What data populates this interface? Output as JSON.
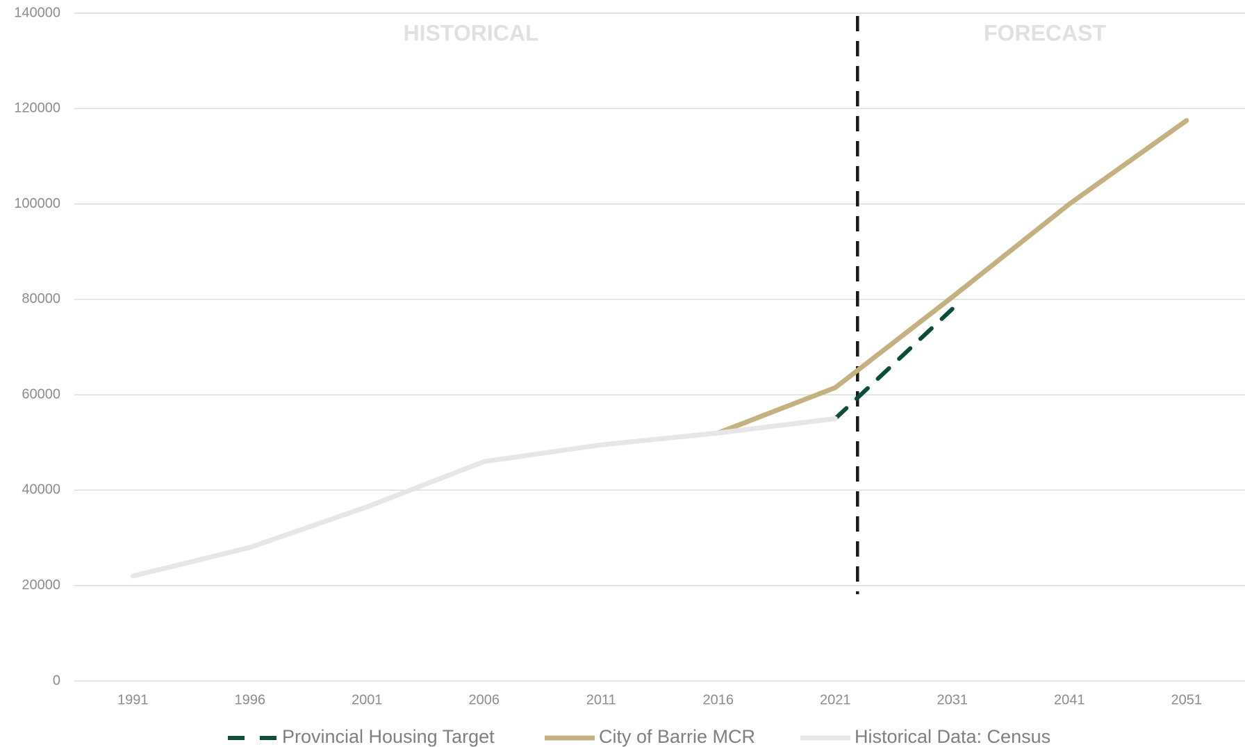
{
  "chart_data": {
    "type": "line",
    "annotations": [
      "HISTORICAL",
      "FORECAST"
    ],
    "categories": [
      "1991",
      "1996",
      "2001",
      "2006",
      "2011",
      "2016",
      "2021",
      "2031",
      "2041",
      "2051"
    ],
    "series": [
      {
        "name": "Provincial Housing Target",
        "color": "#0b4d3a",
        "dashed": true,
        "values": [
          null,
          null,
          null,
          null,
          null,
          null,
          55000,
          78000,
          null,
          null
        ]
      },
      {
        "name": "City of Barrie MCR",
        "color": "#c3b27f",
        "values": [
          null,
          null,
          null,
          null,
          null,
          52000,
          61500,
          80500,
          100000,
          117500
        ]
      },
      {
        "name": "Historical Data: Census",
        "color": "#e6e6e6",
        "values": [
          22000,
          28000,
          36500,
          46000,
          49500,
          52000,
          55000,
          null,
          null,
          null
        ]
      }
    ],
    "ylim": [
      0,
      140000
    ],
    "yticks": [
      0,
      20000,
      40000,
      60000,
      80000,
      100000,
      120000,
      140000
    ],
    "grid": true
  }
}
